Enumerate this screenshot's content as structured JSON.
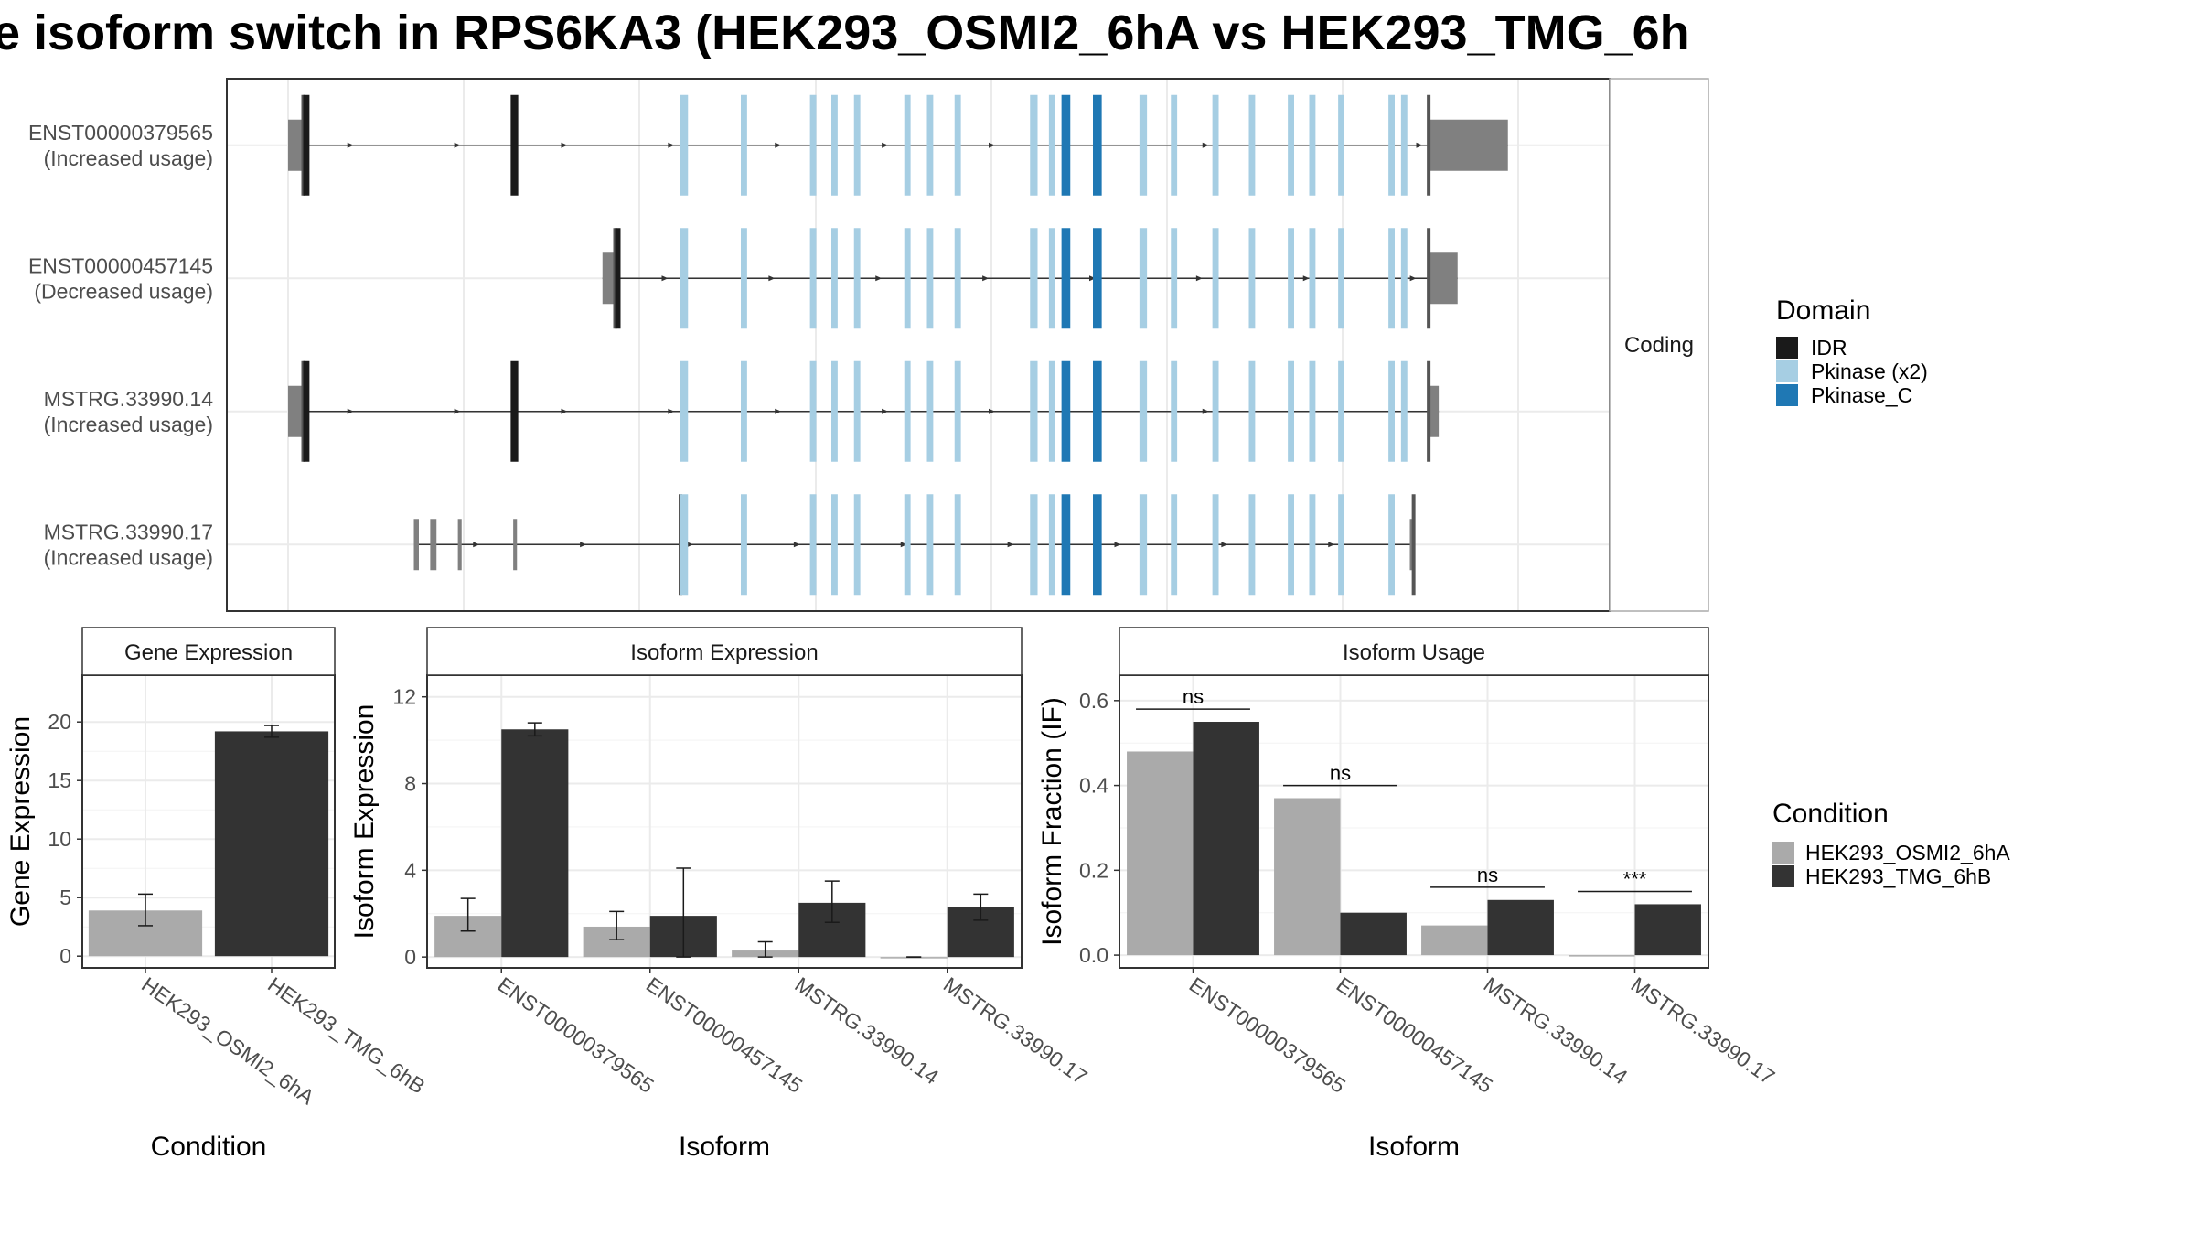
{
  "title": "e isoform switch in RPS6KA3 (HEK293_OSMI2_6hA vs HEK293_TMG_6h",
  "colors": {
    "IDR": "#1a1a1a",
    "Pkinase (x2)": "#a6cee3",
    "Pkinase_C": "#1f78b4",
    "utr": "#808080",
    "cond_a": "#aaaaaa",
    "cond_b": "#333333"
  },
  "structure": {
    "strip_label": "Coding",
    "xlim": [
      0,
      1
    ],
    "isoforms": [
      {
        "id": "ENST00000379565",
        "usage": "(Increased usage)",
        "utr5": [
          [
            0.0,
            0.012
          ]
        ],
        "cds_start": 0.012,
        "cds_end": 0.907,
        "utr3": [
          [
            0.907,
            0.97
          ]
        ],
        "tall_utr3": true,
        "exons": [
          [
            0.012,
            0.017,
            "IDR"
          ],
          [
            0.177,
            0.183,
            "IDR"
          ],
          [
            0.312,
            0.318,
            "Pkinase (x2)"
          ],
          [
            0.36,
            0.365,
            "Pkinase (x2)"
          ],
          [
            0.415,
            0.42,
            "Pkinase (x2)"
          ],
          [
            0.432,
            0.437,
            "Pkinase (x2)"
          ],
          [
            0.45,
            0.455,
            "Pkinase (x2)"
          ],
          [
            0.49,
            0.495,
            "Pkinase (x2)"
          ],
          [
            0.508,
            0.513,
            "Pkinase (x2)"
          ],
          [
            0.53,
            0.535,
            "Pkinase (x2)"
          ],
          [
            0.59,
            0.596,
            "Pkinase (x2)"
          ],
          [
            0.605,
            0.61,
            "Pkinase (x2)"
          ],
          [
            0.615,
            0.622,
            "Pkinase_C"
          ],
          [
            0.64,
            0.647,
            "Pkinase_C"
          ],
          [
            0.677,
            0.683,
            "Pkinase (x2)"
          ],
          [
            0.702,
            0.707,
            "Pkinase (x2)"
          ],
          [
            0.735,
            0.74,
            "Pkinase (x2)"
          ],
          [
            0.764,
            0.769,
            "Pkinase (x2)"
          ],
          [
            0.795,
            0.8,
            "Pkinase (x2)"
          ],
          [
            0.812,
            0.817,
            "Pkinase (x2)"
          ],
          [
            0.835,
            0.84,
            "Pkinase (x2)"
          ],
          [
            0.875,
            0.88,
            "Pkinase (x2)"
          ],
          [
            0.885,
            0.89,
            "Pkinase (x2)"
          ]
        ]
      },
      {
        "id": "ENST00000457145",
        "usage": "(Decreased usage)",
        "utr5": [
          [
            0.25,
            0.26
          ]
        ],
        "cds_start": 0.26,
        "cds_end": 0.907,
        "utr3": [
          [
            0.907,
            0.93
          ]
        ],
        "tall_utr3": false,
        "exons": [
          [
            0.26,
            0.264,
            "IDR"
          ],
          [
            0.312,
            0.318,
            "Pkinase (x2)"
          ],
          [
            0.36,
            0.365,
            "Pkinase (x2)"
          ],
          [
            0.415,
            0.42,
            "Pkinase (x2)"
          ],
          [
            0.432,
            0.437,
            "Pkinase (x2)"
          ],
          [
            0.45,
            0.455,
            "Pkinase (x2)"
          ],
          [
            0.49,
            0.495,
            "Pkinase (x2)"
          ],
          [
            0.508,
            0.513,
            "Pkinase (x2)"
          ],
          [
            0.53,
            0.535,
            "Pkinase (x2)"
          ],
          [
            0.59,
            0.596,
            "Pkinase (x2)"
          ],
          [
            0.605,
            0.61,
            "Pkinase (x2)"
          ],
          [
            0.615,
            0.622,
            "Pkinase_C"
          ],
          [
            0.64,
            0.647,
            "Pkinase_C"
          ],
          [
            0.677,
            0.683,
            "Pkinase (x2)"
          ],
          [
            0.702,
            0.707,
            "Pkinase (x2)"
          ],
          [
            0.735,
            0.74,
            "Pkinase (x2)"
          ],
          [
            0.764,
            0.769,
            "Pkinase (x2)"
          ],
          [
            0.795,
            0.8,
            "Pkinase (x2)"
          ],
          [
            0.812,
            0.817,
            "Pkinase (x2)"
          ],
          [
            0.835,
            0.84,
            "Pkinase (x2)"
          ],
          [
            0.875,
            0.88,
            "Pkinase (x2)"
          ],
          [
            0.885,
            0.89,
            "Pkinase (x2)"
          ]
        ]
      },
      {
        "id": "MSTRG.33990.14",
        "usage": "(Increased usage)",
        "utr5": [
          [
            0.0,
            0.012
          ]
        ],
        "cds_start": 0.012,
        "cds_end": 0.907,
        "utr3": [
          [
            0.907,
            0.915
          ]
        ],
        "tall_utr3": false,
        "exons": [
          [
            0.012,
            0.017,
            "IDR"
          ],
          [
            0.177,
            0.183,
            "IDR"
          ],
          [
            0.312,
            0.318,
            "Pkinase (x2)"
          ],
          [
            0.36,
            0.365,
            "Pkinase (x2)"
          ],
          [
            0.415,
            0.42,
            "Pkinase (x2)"
          ],
          [
            0.432,
            0.437,
            "Pkinase (x2)"
          ],
          [
            0.45,
            0.455,
            "Pkinase (x2)"
          ],
          [
            0.49,
            0.495,
            "Pkinase (x2)"
          ],
          [
            0.508,
            0.513,
            "Pkinase (x2)"
          ],
          [
            0.53,
            0.535,
            "Pkinase (x2)"
          ],
          [
            0.59,
            0.596,
            "Pkinase (x2)"
          ],
          [
            0.605,
            0.61,
            "Pkinase (x2)"
          ],
          [
            0.615,
            0.622,
            "Pkinase_C"
          ],
          [
            0.64,
            0.647,
            "Pkinase_C"
          ],
          [
            0.677,
            0.683,
            "Pkinase (x2)"
          ],
          [
            0.702,
            0.707,
            "Pkinase (x2)"
          ],
          [
            0.735,
            0.74,
            "Pkinase (x2)"
          ],
          [
            0.764,
            0.769,
            "Pkinase (x2)"
          ],
          [
            0.795,
            0.8,
            "Pkinase (x2)"
          ],
          [
            0.812,
            0.817,
            "Pkinase (x2)"
          ],
          [
            0.835,
            0.84,
            "Pkinase (x2)"
          ],
          [
            0.875,
            0.88,
            "Pkinase (x2)"
          ],
          [
            0.885,
            0.89,
            "Pkinase (x2)"
          ]
        ]
      },
      {
        "id": "MSTRG.33990.17",
        "usage": "(Increased usage)",
        "utr5": [
          [
            0.1,
            0.104
          ],
          [
            0.113,
            0.118
          ],
          [
            0.135,
            0.138
          ],
          [
            0.179,
            0.182
          ]
        ],
        "cds_start": 0.312,
        "cds_end": 0.895,
        "utr3": [
          [
            0.892,
            0.895
          ]
        ],
        "tall_utr3": false,
        "exons": [
          [
            0.312,
            0.318,
            "Pkinase (x2)"
          ],
          [
            0.36,
            0.365,
            "Pkinase (x2)"
          ],
          [
            0.415,
            0.42,
            "Pkinase (x2)"
          ],
          [
            0.432,
            0.437,
            "Pkinase (x2)"
          ],
          [
            0.45,
            0.455,
            "Pkinase (x2)"
          ],
          [
            0.49,
            0.495,
            "Pkinase (x2)"
          ],
          [
            0.508,
            0.513,
            "Pkinase (x2)"
          ],
          [
            0.53,
            0.535,
            "Pkinase (x2)"
          ],
          [
            0.59,
            0.596,
            "Pkinase (x2)"
          ],
          [
            0.605,
            0.61,
            "Pkinase (x2)"
          ],
          [
            0.615,
            0.622,
            "Pkinase_C"
          ],
          [
            0.64,
            0.647,
            "Pkinase_C"
          ],
          [
            0.677,
            0.683,
            "Pkinase (x2)"
          ],
          [
            0.702,
            0.707,
            "Pkinase (x2)"
          ],
          [
            0.735,
            0.74,
            "Pkinase (x2)"
          ],
          [
            0.764,
            0.769,
            "Pkinase (x2)"
          ],
          [
            0.795,
            0.8,
            "Pkinase (x2)"
          ],
          [
            0.812,
            0.817,
            "Pkinase (x2)"
          ],
          [
            0.835,
            0.84,
            "Pkinase (x2)"
          ],
          [
            0.875,
            0.88,
            "Pkinase (x2)"
          ]
        ]
      }
    ]
  },
  "legend_domain": {
    "title": "Domain",
    "items": [
      "IDR",
      "Pkinase (x2)",
      "Pkinase_C"
    ]
  },
  "legend_condition": {
    "title": "Condition",
    "items": [
      "HEK293_OSMI2_6hA",
      "HEK293_TMG_6hB"
    ]
  },
  "chart_data": [
    {
      "type": "bar",
      "title": "Gene Expression",
      "xlabel": "Condition",
      "ylabel": "Gene Expression",
      "categories": [
        "HEK293_OSMI2_6hA",
        "HEK293_TMG_6hB"
      ],
      "values": [
        3.9,
        19.2
      ],
      "errors": [
        [
          2.6,
          5.3
        ],
        [
          18.7,
          19.7
        ]
      ],
      "ylim": [
        -1,
        24
      ],
      "yticks": [
        0,
        5,
        10,
        15,
        20
      ],
      "grid": true
    },
    {
      "type": "bar",
      "title": "Isoform Expression",
      "xlabel": "Isoform",
      "ylabel": "Isoform Expression",
      "categories": [
        "ENST00000379565",
        "ENST00000457145",
        "MSTRG.33990.14",
        "MSTRG.33990.17"
      ],
      "series": [
        {
          "name": "HEK293_OSMI2_6hA",
          "values": [
            1.9,
            1.4,
            0.3,
            0.0
          ],
          "errors": [
            [
              1.2,
              2.7
            ],
            [
              0.8,
              2.1
            ],
            [
              0.0,
              0.7
            ],
            [
              0.0,
              0.0
            ]
          ]
        },
        {
          "name": "HEK293_TMG_6hB",
          "values": [
            10.5,
            1.9,
            2.5,
            2.3
          ],
          "errors": [
            [
              10.2,
              10.8
            ],
            [
              0.0,
              4.1
            ],
            [
              1.6,
              3.5
            ],
            [
              1.7,
              2.9
            ]
          ]
        }
      ],
      "ylim": [
        -0.5,
        13
      ],
      "yticks": [
        0,
        4,
        8,
        12
      ],
      "grid": true
    },
    {
      "type": "bar",
      "title": "Isoform Usage",
      "xlabel": "Isoform",
      "ylabel": "Isoform Fraction (IF)",
      "categories": [
        "ENST00000379565",
        "ENST00000457145",
        "MSTRG.33990.14",
        "MSTRG.33990.17"
      ],
      "series": [
        {
          "name": "HEK293_OSMI2_6hA",
          "values": [
            0.48,
            0.37,
            0.07,
            0.0
          ]
        },
        {
          "name": "HEK293_TMG_6hB",
          "values": [
            0.55,
            0.1,
            0.13,
            0.12
          ]
        }
      ],
      "annotations": [
        "ns",
        "ns",
        "ns",
        "***"
      ],
      "annotation_y": [
        0.58,
        0.4,
        0.16,
        0.15
      ],
      "ylim": [
        -0.03,
        0.66
      ],
      "yticks": [
        0.0,
        0.2,
        0.4,
        0.6
      ],
      "ytick_labels": [
        "0.0",
        "0.2",
        "0.4",
        "0.6"
      ],
      "grid": true
    }
  ]
}
